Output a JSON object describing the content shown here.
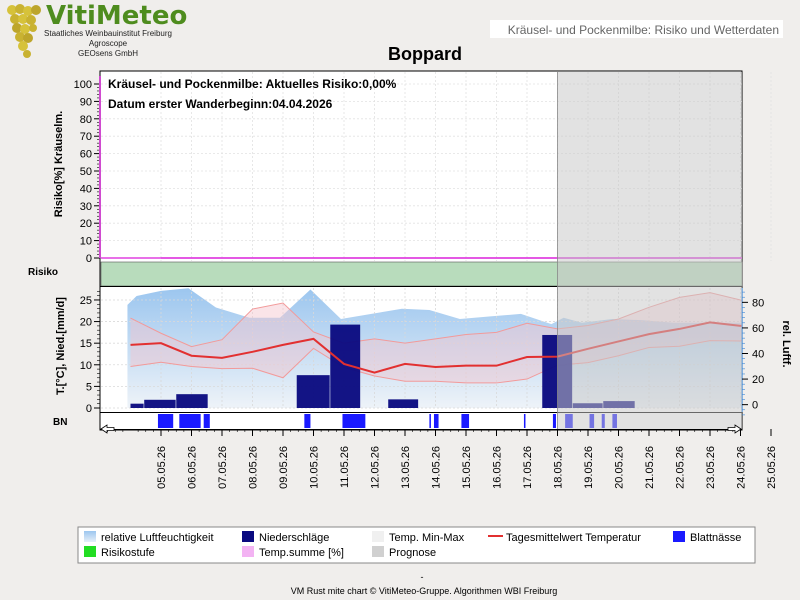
{
  "header": {
    "brand": "VitiMeteo",
    "org_lines": [
      "Staatliches Weinbauinstitut Freiburg",
      "Agroscope",
      "GEOsens GmbH"
    ],
    "page_heading": "Kräusel- und Pockenmilbe: Risiko und Wetterdaten"
  },
  "chart_data": {
    "type": "line",
    "title": "Boppard",
    "annotations": [
      "Kräusel- und Pockenmilbe: Aktuelles Risiko:0,00%",
      "Datum erster Wanderbeginn:04.04.2026"
    ],
    "x": [
      "05.05.26",
      "06.05.26",
      "07.05.26",
      "08.05.26",
      "09.05.26",
      "10.05.26",
      "11.05.26",
      "12.05.26",
      "13.05.26",
      "14.05.26",
      "15.05.26",
      "16.05.26",
      "17.05.26",
      "18.05.26",
      "19.05.26",
      "20.05.26",
      "21.05.26",
      "22.05.26",
      "23.05.26",
      "24.05.26",
      "25.05.26"
    ],
    "forecast_start": "18.5.26",
    "panels": {
      "risk": {
        "ylabel": "Risiko[%] Kräuselm.",
        "ylim": [
          0,
          100
        ],
        "yticks": [
          0,
          10,
          20,
          30,
          40,
          50,
          60,
          70,
          80,
          90,
          100
        ],
        "series": [
          {
            "name": "Temp.summe [%]",
            "values": [
              0,
              0,
              0,
              0,
              0,
              0,
              0,
              0,
              0,
              0,
              0,
              0,
              0,
              0,
              0,
              0,
              0,
              0,
              0,
              0,
              0
            ]
          }
        ]
      },
      "risk_band": {
        "label": "Risiko",
        "level": "gering"
      },
      "weather": {
        "ylabel_left": "T.[°C], Nied.[mm/d]",
        "ylabel_right": "rel. Luftf.",
        "ylim_left": [
          0,
          28
        ],
        "yticks_left": [
          0,
          5,
          10,
          15,
          20,
          25
        ],
        "ylim_right": [
          -12,
          92
        ],
        "yticks_right": [
          0,
          20,
          40,
          60,
          80
        ],
        "humidity_x": [
          3.9,
          4.2,
          5.0,
          5.9,
          6.8,
          7.9,
          8.9,
          9.9,
          10.9,
          11.9,
          12.9,
          13.8,
          14.8,
          15.8,
          16.8,
          17.8,
          18.2,
          18.8,
          19.8,
          20.8,
          21.8,
          22.8,
          23.8,
          24.8,
          25.1
        ],
        "humidity": [
          78,
          85,
          89,
          91,
          76,
          68,
          68,
          90,
          67,
          71,
          75,
          74,
          67,
          69,
          71,
          63,
          68,
          64,
          67,
          66,
          64,
          64,
          64,
          64,
          63
        ],
        "temp_mean_x": [
          4.0,
          5.0,
          6.0,
          7.0,
          8.0,
          9.0,
          10.0,
          11.0,
          12.0,
          13.0,
          14.0,
          15.0,
          16.0,
          17.0,
          18.0,
          19.0,
          20.0,
          21.0,
          22.0,
          23.0,
          24.0,
          25.0
        ],
        "temp_mean": [
          14.6,
          15.0,
          12.1,
          11.6,
          13.0,
          14.6,
          16.0,
          10.2,
          8.2,
          10.2,
          9.5,
          9.8,
          9.8,
          11.8,
          11.9,
          13.7,
          15.4,
          17.1,
          18.3,
          19.8,
          19.0,
          20.3
        ],
        "temp_max": [
          20.8,
          17.3,
          14.2,
          15.8,
          22.9,
          24.3,
          17.6,
          15.0,
          16.0,
          15.0,
          16.0,
          17.0,
          17.5,
          19.6,
          18.3,
          19.1,
          20.6,
          23.3,
          25.6,
          26.7,
          25.0,
          21.0
        ],
        "temp_min": [
          9.6,
          10.6,
          9.6,
          9.1,
          9.2,
          7.0,
          13.8,
          9.4,
          7.4,
          6.2,
          6.2,
          5.8,
          5.8,
          6.7,
          9.9,
          10.5,
          12.1,
          14.0,
          14.3,
          15.6,
          15.5,
          19.5
        ],
        "precip_bars": [
          {
            "from": 4.0,
            "to": 4.45,
            "mm": 1.0
          },
          {
            "from": 4.45,
            "to": 5.5,
            "mm": 1.9
          },
          {
            "from": 5.5,
            "to": 6.55,
            "mm": 3.2
          },
          {
            "from": 9.45,
            "to": 10.55,
            "mm": 7.6
          },
          {
            "from": 10.55,
            "to": 11.55,
            "mm": 19.3
          },
          {
            "from": 12.45,
            "to": 13.45,
            "mm": 2.0
          },
          {
            "from": 17.5,
            "to": 18.5,
            "mm": 16.9
          },
          {
            "from": 18.5,
            "to": 19.5,
            "mm": 1.1
          },
          {
            "from": 19.5,
            "to": 20.55,
            "mm": 1.6
          }
        ]
      },
      "leaf_wetness": {
        "label": "BN",
        "segments": [
          [
            4.9,
            5.4
          ],
          [
            5.6,
            6.3
          ],
          [
            6.4,
            6.6
          ],
          [
            9.7,
            9.9
          ],
          [
            10.95,
            11.7
          ],
          [
            13.8,
            13.85
          ],
          [
            13.95,
            14.1
          ],
          [
            14.85,
            15.1
          ],
          [
            16.9,
            16.95
          ],
          [
            17.85,
            17.95
          ],
          [
            18.25,
            18.5
          ],
          [
            19.05,
            19.2
          ],
          [
            19.45,
            19.55
          ],
          [
            19.8,
            19.95
          ]
        ]
      }
    },
    "legend": [
      {
        "label": "relative Luftfeuchtigkeit",
        "symbol": "gradient-blue"
      },
      {
        "label": "Niederschläge",
        "symbol": "navy"
      },
      {
        "label": "Temp. Min-Max",
        "symbol": "light"
      },
      {
        "label": "Tagesmittelwert Temperatur",
        "symbol": "red-line"
      },
      {
        "label": "Blattnässe",
        "symbol": "blue"
      },
      {
        "label": "Risikostufe",
        "symbol": "green"
      },
      {
        "label": "Temp.summe [%]",
        "symbol": "pink"
      },
      {
        "label": "Prognose",
        "symbol": "grey"
      }
    ],
    "colors": {
      "humidity": "#a9cdee",
      "precip": "#0a0a80",
      "temp_band": "#f4c4cc",
      "temp_mean": "#e23030",
      "leaf_wetness": "#1a1aff",
      "risk_band": "#b8dcbc",
      "temp_sum": "#e040e0",
      "forecast": "#c8c8c8"
    }
  },
  "footer": {
    "dash": "-",
    "credit": "VM Rust mite chart © VitiMeteo-Gruppe. Algorithmen WBI Freiburg"
  }
}
